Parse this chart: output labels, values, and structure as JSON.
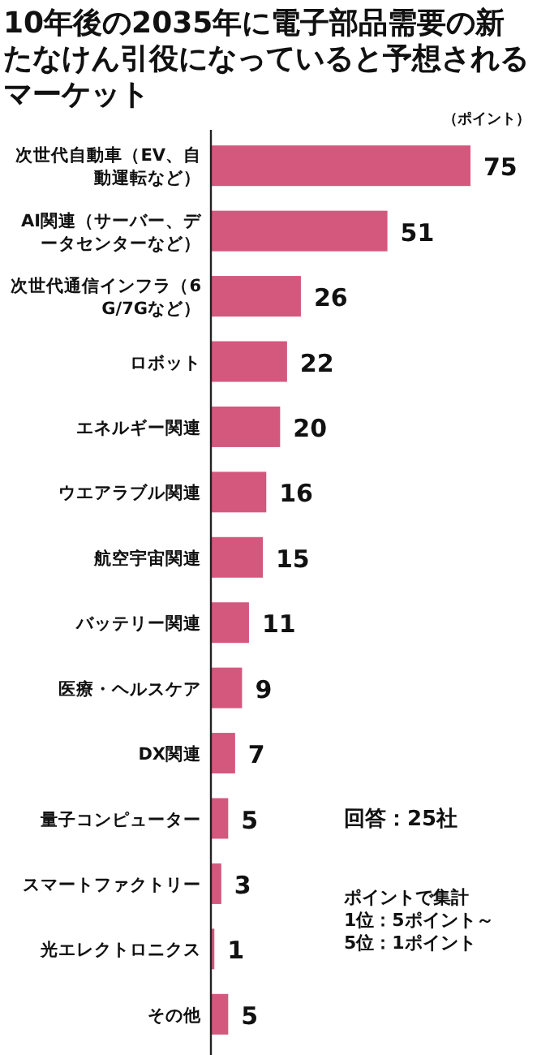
{
  "chart_data": {
    "type": "bar",
    "orientation": "horizontal",
    "title": "10年後の2035年に電子部品需要の新たなけん引役になっていると予想されるマーケット",
    "categories": [
      "次世代自動車（EV、自動運転など）",
      "AI関連（サーバー、データセンターなど）",
      "次世代通信インフラ（6G/7Gなど）",
      "ロボット",
      "エネルギー関連",
      "ウエアラブル関連",
      "航空宇宙関連",
      "バッテリー関連",
      "医療・ヘルスケア",
      "DX関連",
      "量子コンピューター",
      "スマートファクトリー",
      "光エレクトロニクス",
      "その他"
    ],
    "values": [
      75,
      51,
      26,
      22,
      20,
      16,
      15,
      11,
      9,
      7,
      5,
      3,
      1,
      5
    ],
    "color": "#d4587e",
    "data_labels": true,
    "annotations": [
      "（ポイント）",
      "回答：25社",
      "ポイントで集計\n1位：5ポイント～\n5位：1ポイント"
    ]
  }
}
